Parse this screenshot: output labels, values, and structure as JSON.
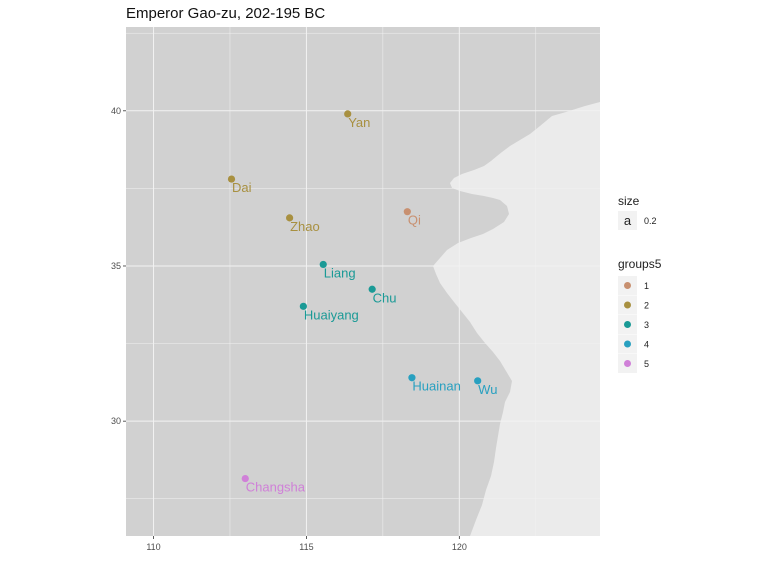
{
  "title": "Emperor Gao-zu, 202-195 BC",
  "chart_data": {
    "type": "scatter",
    "title": "Emperor Gao-zu, 202-195 BC",
    "xlabel": "",
    "ylabel": "",
    "xlim": [
      109.1,
      124.6
    ],
    "ylim": [
      26.3,
      42.7
    ],
    "x_ticks": [
      110,
      115,
      120
    ],
    "y_ticks": [
      30,
      35,
      40
    ],
    "grid": true,
    "points": [
      {
        "name": "Yan",
        "lon": 116.35,
        "lat": 39.9,
        "group": "2"
      },
      {
        "name": "Dai",
        "lon": 112.55,
        "lat": 37.8,
        "group": "2"
      },
      {
        "name": "Zhao",
        "lon": 114.45,
        "lat": 36.55,
        "group": "2"
      },
      {
        "name": "Qi",
        "lon": 118.3,
        "lat": 36.75,
        "group": "1"
      },
      {
        "name": "Liang",
        "lon": 115.55,
        "lat": 35.05,
        "group": "3"
      },
      {
        "name": "Chu",
        "lon": 117.15,
        "lat": 34.25,
        "group": "3"
      },
      {
        "name": "Huaiyang",
        "lon": 114.9,
        "lat": 33.7,
        "group": "3"
      },
      {
        "name": "Huainan",
        "lon": 118.45,
        "lat": 31.4,
        "group": "4"
      },
      {
        "name": "Wu",
        "lon": 120.6,
        "lat": 31.3,
        "group": "4"
      },
      {
        "name": "Changsha",
        "lon": 113.0,
        "lat": 28.15,
        "group": "5"
      }
    ],
    "legend_size": {
      "title": "size",
      "key": "a",
      "label": "0.2"
    },
    "legend_groups": {
      "title": "groups5",
      "items": [
        {
          "label": "1",
          "color": "#c89070"
        },
        {
          "label": "2",
          "color": "#a89040"
        },
        {
          "label": "3",
          "color": "#1a9a96"
        },
        {
          "label": "4",
          "color": "#28a0c0"
        },
        {
          "label": "5",
          "color": "#d080d8"
        }
      ]
    },
    "legend_position": "right",
    "colors": {
      "land": "#d1d1d1",
      "sea": "#ebebeb",
      "grid": "#e8e8e8"
    }
  }
}
